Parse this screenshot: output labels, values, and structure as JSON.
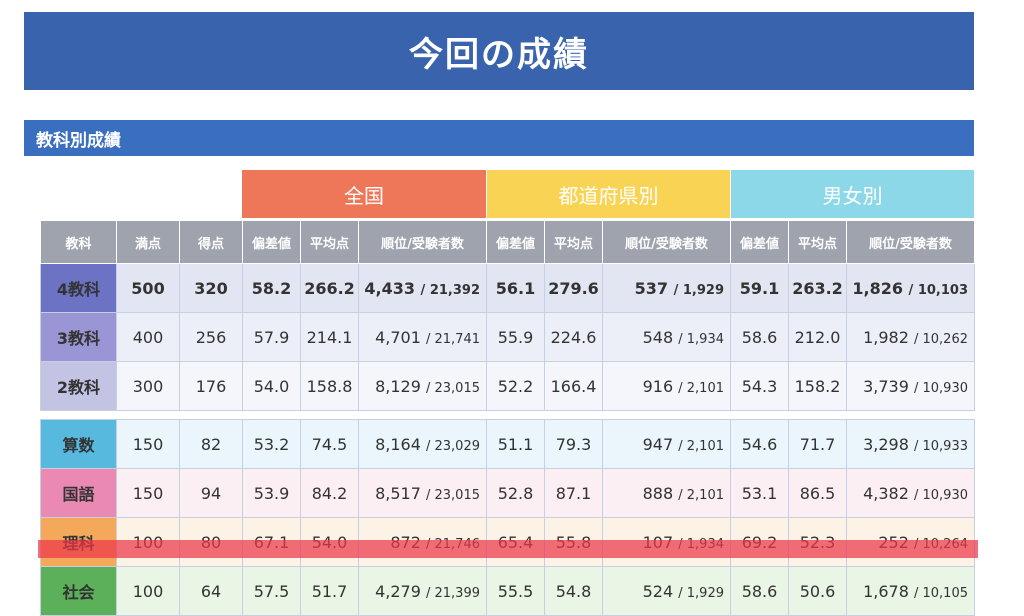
{
  "header": {
    "title": "今回の成績"
  },
  "section": {
    "title": "教科別成績"
  },
  "groups": {
    "national": "全国",
    "prefecture": "都道府県別",
    "gender": "男女別"
  },
  "columns": {
    "subject": "教科",
    "max": "満点",
    "score": "得点",
    "deviation": "偏差値",
    "average": "平均点",
    "rank": "順位/受験者数"
  },
  "rows": [
    {
      "subject": "4教科",
      "max": "500",
      "score": "320",
      "national": {
        "deviation": "58.2",
        "average": "266.2",
        "rank": "4,433",
        "total": "/ 21,392"
      },
      "prefecture": {
        "deviation": "56.1",
        "average": "279.6",
        "rank": "537",
        "total": "/ 1,929"
      },
      "gender": {
        "deviation": "59.1",
        "average": "263.2",
        "rank": "1,826",
        "total": "/ 10,103"
      }
    },
    {
      "subject": "3教科",
      "max": "400",
      "score": "256",
      "national": {
        "deviation": "57.9",
        "average": "214.1",
        "rank": "4,701",
        "total": "/ 21,741"
      },
      "prefecture": {
        "deviation": "55.9",
        "average": "224.6",
        "rank": "548",
        "total": "/ 1,934"
      },
      "gender": {
        "deviation": "58.6",
        "average": "212.0",
        "rank": "1,982",
        "total": "/ 10,262"
      }
    },
    {
      "subject": "2教科",
      "max": "300",
      "score": "176",
      "national": {
        "deviation": "54.0",
        "average": "158.8",
        "rank": "8,129",
        "total": "/ 23,015"
      },
      "prefecture": {
        "deviation": "52.2",
        "average": "166.4",
        "rank": "916",
        "total": "/ 2,101"
      },
      "gender": {
        "deviation": "54.3",
        "average": "158.2",
        "rank": "3,739",
        "total": "/ 10,930"
      }
    },
    {
      "subject": "算数",
      "max": "150",
      "score": "82",
      "national": {
        "deviation": "53.2",
        "average": "74.5",
        "rank": "8,164",
        "total": "/ 23,029"
      },
      "prefecture": {
        "deviation": "51.1",
        "average": "79.3",
        "rank": "947",
        "total": "/ 2,101"
      },
      "gender": {
        "deviation": "54.6",
        "average": "71.7",
        "rank": "3,298",
        "total": "/ 10,933"
      }
    },
    {
      "subject": "国語",
      "max": "150",
      "score": "94",
      "national": {
        "deviation": "53.9",
        "average": "84.2",
        "rank": "8,517",
        "total": "/ 23,015"
      },
      "prefecture": {
        "deviation": "52.8",
        "average": "87.1",
        "rank": "888",
        "total": "/ 2,101"
      },
      "gender": {
        "deviation": "53.1",
        "average": "86.5",
        "rank": "4,382",
        "total": "/ 10,930"
      }
    },
    {
      "subject": "理科",
      "max": "100",
      "score": "80",
      "national": {
        "deviation": "67.1",
        "average": "54.0",
        "rank": "872",
        "total": "/ 21,746"
      },
      "prefecture": {
        "deviation": "65.4",
        "average": "55.8",
        "rank": "107",
        "total": "/ 1,934"
      },
      "gender": {
        "deviation": "69.2",
        "average": "52.3",
        "rank": "252",
        "total": "/ 10,264"
      }
    },
    {
      "subject": "社会",
      "max": "100",
      "score": "64",
      "national": {
        "deviation": "57.5",
        "average": "51.7",
        "rank": "4,279",
        "total": "/ 21,399"
      },
      "prefecture": {
        "deviation": "55.5",
        "average": "54.8",
        "rank": "524",
        "total": "/ 1,929"
      },
      "gender": {
        "deviation": "58.6",
        "average": "50.6",
        "rank": "1,678",
        "total": "/ 10,105"
      }
    }
  ],
  "colors": {
    "title_bar": "#3a63ad",
    "section_bar": "#3a6fc0",
    "national": "#ee775a",
    "prefecture": "#f9d354",
    "gender": "#8dd8e8",
    "highlight": "#ec364a"
  }
}
